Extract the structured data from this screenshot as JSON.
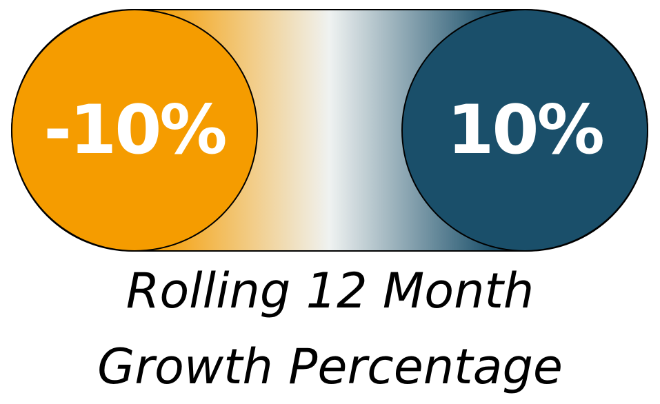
{
  "legend": {
    "low": {
      "label": "-10%",
      "color": "#F59C00"
    },
    "high": {
      "label": "10%",
      "color": "#1A4F6A"
    },
    "midpoint_color": "#EFF2F1",
    "caption_line1": "Rolling 12 Month",
    "caption_line2": "Growth Percentage"
  }
}
